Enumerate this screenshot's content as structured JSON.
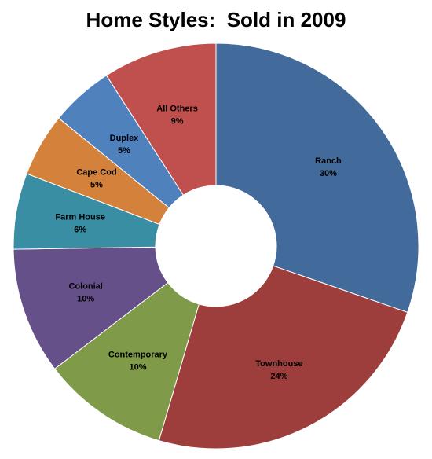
{
  "chart_data": {
    "type": "pie",
    "title": "Home Styles:  Sold in 2009",
    "categories": [
      "Ranch",
      "Townhouse",
      "Contemporary",
      "Colonial",
      "Farm House",
      "Cape Cod",
      "Duplex",
      "All Others"
    ],
    "values": [
      30,
      24,
      10,
      10,
      6,
      5,
      5,
      9
    ],
    "value_labels": [
      "30%",
      "24%",
      "10%",
      "10%",
      "6%",
      "5%",
      "5%",
      "9%"
    ],
    "colors": [
      "#426a9b",
      "#9e3e3c",
      "#7f9a48",
      "#66508a",
      "#3a8ea3",
      "#d4813b",
      "#4f81bd",
      "#c0504d"
    ],
    "legend": "none"
  }
}
